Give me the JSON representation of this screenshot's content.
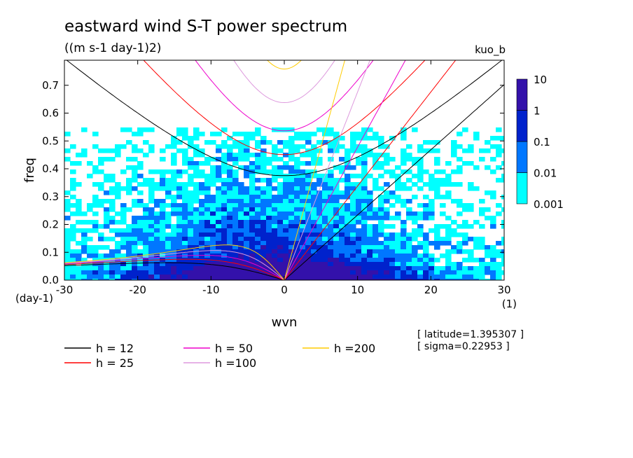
{
  "chart_data": {
    "type": "heatmap",
    "title": "eastward wind S-T power spectrum",
    "subtitle": "((m s-1 day-1)2)",
    "run_label": "kuo_b",
    "xlabel": "wvn",
    "ylabel": "freq",
    "x_unit": "(1)",
    "y_unit": "(day-1)",
    "xlim": [
      -30,
      30
    ],
    "ylim": [
      0,
      0.79
    ],
    "x_ticks": [
      -30,
      -20,
      -10,
      0,
      10,
      20,
      30
    ],
    "x_tick_labels": [
      "-30",
      "-20",
      "-10",
      "0",
      "10",
      "20",
      "30"
    ],
    "y_ticks": [
      0.0,
      0.1,
      0.2,
      0.3,
      0.4,
      0.5,
      0.6,
      0.7
    ],
    "y_tick_labels": [
      "0.0",
      "0.1",
      "0.2",
      "0.3",
      "0.4",
      "0.5",
      "0.6",
      "0.7"
    ],
    "colorbar": {
      "levels": [
        "0.001",
        "0.01",
        "0.1",
        "1",
        "10"
      ],
      "colors": [
        "#00ffff",
        "#0077ff",
        "#0022cc",
        "#3311aa"
      ]
    },
    "dispersion_curves": [
      {
        "name": "h = 12",
        "h": 12,
        "color": "#000000"
      },
      {
        "name": "h = 25",
        "h": 25,
        "color": "#ff0000"
      },
      {
        "name": "h = 50",
        "h": 50,
        "color": "#ee00cc"
      },
      {
        "name": "h =100",
        "h": 100,
        "color": "#dd99dd"
      },
      {
        "name": "h =200",
        "h": 200,
        "color": "#ffcc00"
      }
    ],
    "annotations": {
      "latitude": "[ latitude=1.395307 ]",
      "sigma": "[ sigma=0.22953 ]"
    }
  }
}
